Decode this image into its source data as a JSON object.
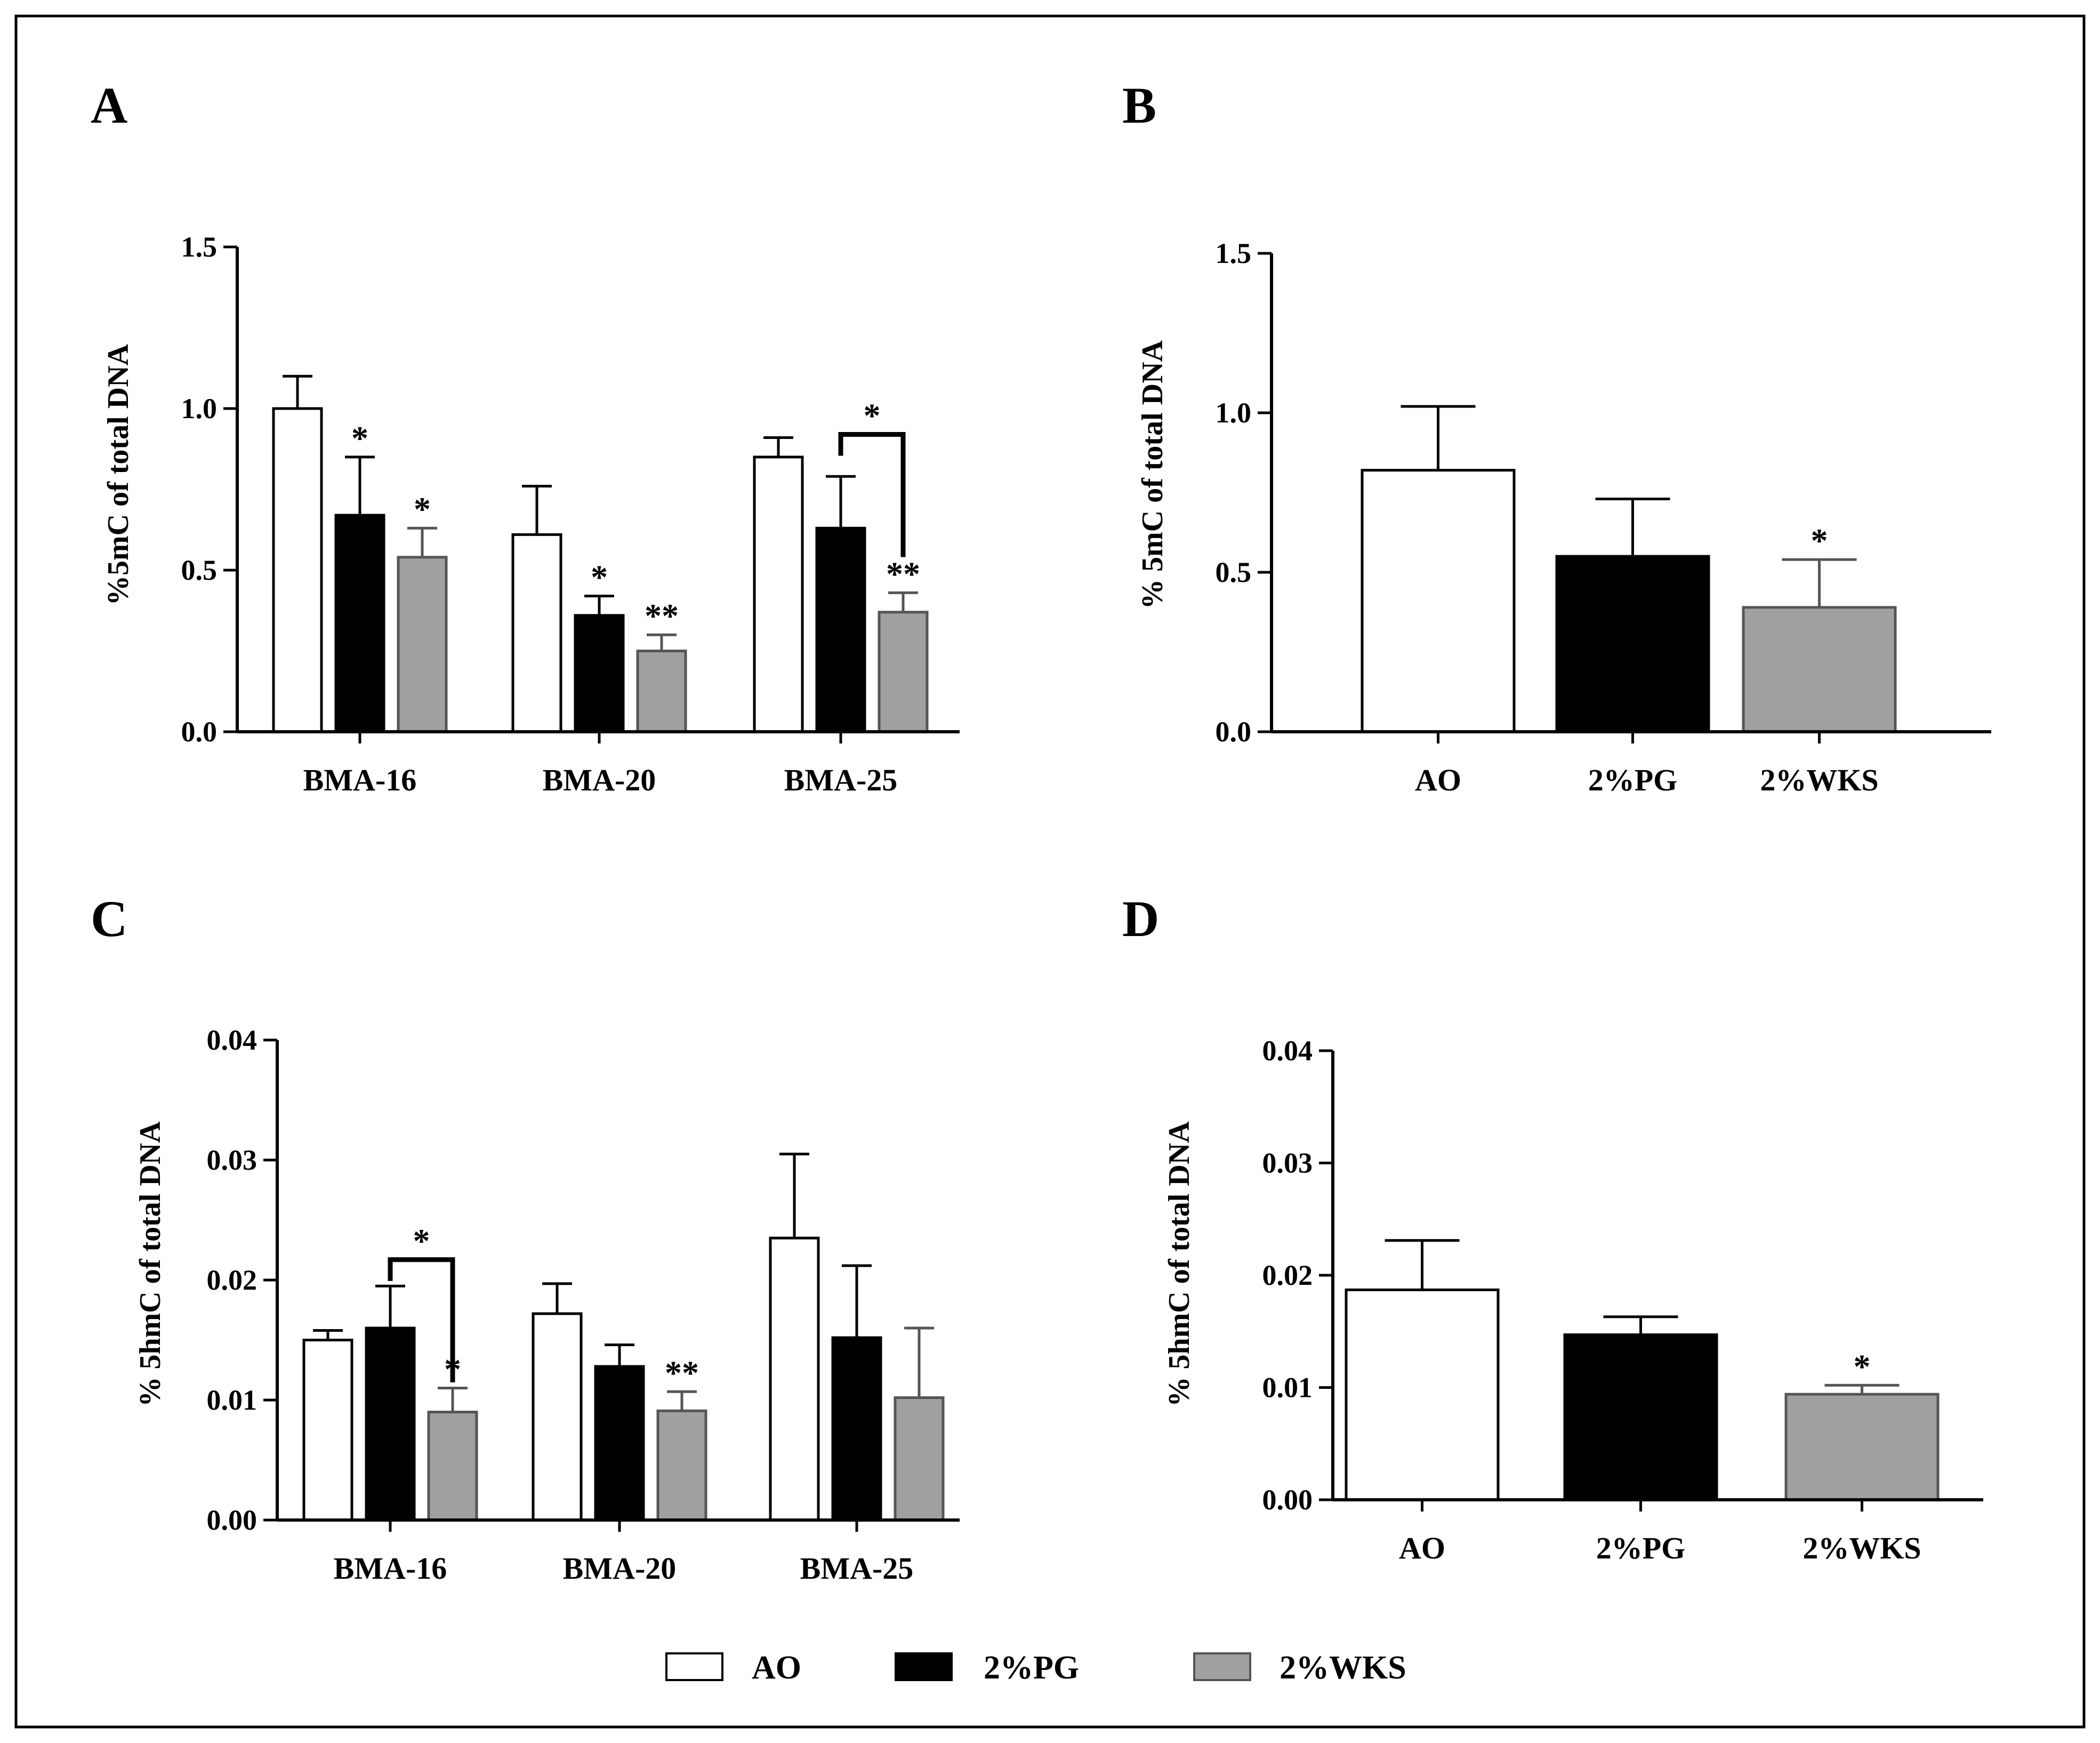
{
  "colors": {
    "AO": "#ffffff",
    "2%PG": "#000000",
    "2%WKS": "#a0a0a0",
    "axis": "#000000"
  },
  "legend": [
    {
      "key": "AO",
      "label": "AO"
    },
    {
      "key": "2%PG",
      "label": "2%PG"
    },
    {
      "key": "2%WKS",
      "label": "2%WKS"
    }
  ],
  "chart_data": [
    {
      "panel": "A",
      "type": "bar",
      "ylabel": "%5mC of total DNA",
      "ylim": [
        0,
        1.5
      ],
      "yticks": [
        "0.0",
        "0.5",
        "1.0",
        "1.5"
      ],
      "categories": [
        "BMA-16",
        "BMA-20",
        "BMA-25"
      ],
      "series": [
        {
          "name": "AO",
          "values": [
            1.0,
            0.61,
            0.85
          ],
          "errors": [
            0.1,
            0.15,
            0.06
          ],
          "labels": [
            "",
            "",
            ""
          ]
        },
        {
          "name": "2%PG",
          "values": [
            0.67,
            0.36,
            0.63
          ],
          "errors": [
            0.18,
            0.06,
            0.16
          ],
          "labels": [
            "*",
            "*",
            ""
          ]
        },
        {
          "name": "2%WKS",
          "values": [
            0.54,
            0.25,
            0.37
          ],
          "errors": [
            0.09,
            0.05,
            0.06
          ],
          "labels": [
            "*",
            "**",
            "**"
          ]
        }
      ],
      "brackets": [
        {
          "category": 2,
          "from": 1,
          "to": 2,
          "label": "*",
          "level": 0.92
        }
      ]
    },
    {
      "panel": "B",
      "type": "bar",
      "ylabel": "% 5mC of total DNA",
      "ylim": [
        0,
        1.5
      ],
      "yticks": [
        "0.0",
        "0.5",
        "1.0",
        "1.5"
      ],
      "categories": [
        "AO",
        "2%PG",
        "2%WKS"
      ],
      "values": [
        0.82,
        0.55,
        0.39
      ],
      "errors": [
        0.2,
        0.18,
        0.15
      ],
      "labels": [
        "",
        "",
        "*"
      ]
    },
    {
      "panel": "C",
      "type": "bar",
      "ylabel": "% 5hmC of total DNA",
      "ylim": [
        0,
        0.04
      ],
      "yticks": [
        "0.00",
        "0.01",
        "0.02",
        "0.03",
        "0.04"
      ],
      "categories": [
        "BMA-16",
        "BMA-20",
        "BMA-25"
      ],
      "series": [
        {
          "name": "AO",
          "values": [
            0.015,
            0.0172,
            0.0235
          ],
          "errors": [
            0.0008,
            0.0025,
            0.007
          ],
          "labels": [
            "",
            "",
            ""
          ]
        },
        {
          "name": "2%PG",
          "values": [
            0.016,
            0.0128,
            0.0152
          ],
          "errors": [
            0.0035,
            0.0018,
            0.006
          ],
          "labels": [
            "",
            "",
            ""
          ]
        },
        {
          "name": "2%WKS",
          "values": [
            0.009,
            0.0091,
            0.0102
          ],
          "errors": [
            0.002,
            0.0016,
            0.0058
          ],
          "labels": [
            "*",
            "**",
            ""
          ]
        }
      ],
      "brackets": [
        {
          "category": 0,
          "from": 1,
          "to": 2,
          "label": "*",
          "level": 0.0217
        }
      ]
    },
    {
      "panel": "D",
      "type": "bar",
      "ylabel": "% 5hmC of total DNA",
      "ylim": [
        0,
        0.04
      ],
      "yticks": [
        "0.00",
        "0.01",
        "0.02",
        "0.03",
        "0.04"
      ],
      "categories": [
        "AO",
        "2%PG",
        "2%WKS"
      ],
      "values": [
        0.0187,
        0.0147,
        0.0094
      ],
      "errors": [
        0.0044,
        0.0016,
        0.0008
      ],
      "labels": [
        "",
        "",
        "*"
      ]
    }
  ]
}
